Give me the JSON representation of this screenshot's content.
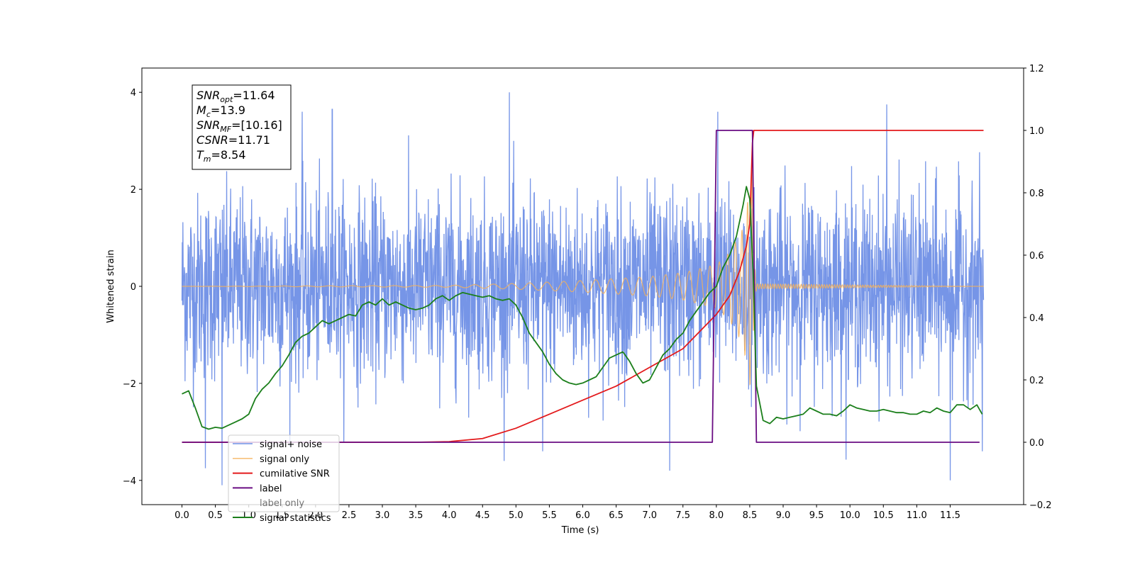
{
  "chart_data": {
    "type": "line",
    "xlabel": "Time (s)",
    "ylabel": "Whitened strain",
    "xlim": [
      -0.6,
      12.6
    ],
    "ylim": [
      -4.5,
      4.5
    ],
    "y2lim": [
      -0.2,
      1.2
    ],
    "x_ticks": [
      0.0,
      0.5,
      1.0,
      1.5,
      2.0,
      2.5,
      3.0,
      3.5,
      4.0,
      4.5,
      5.0,
      5.5,
      6.0,
      6.5,
      7.0,
      7.5,
      8.0,
      8.5,
      9.0,
      9.5,
      10.0,
      10.5,
      11.0,
      11.5
    ],
    "x_tick_labels": [
      "0.0",
      "0.5",
      "1.0",
      "1.5",
      "2.0",
      "2.5",
      "3.0",
      "3.5",
      "4.0",
      "4.5",
      "5.0",
      "5.5",
      "6.0",
      "6.5",
      "7.0",
      "7.5",
      "8.0",
      "8.5",
      "9.0",
      "9.5",
      "10.0",
      "10.5",
      "11.0",
      "11.5"
    ],
    "y_ticks": [
      -4,
      -2,
      0,
      2,
      4
    ],
    "y_tick_labels": [
      "−4",
      "−2",
      "0",
      "2",
      "4"
    ],
    "y2_ticks": [
      -0.2,
      0.0,
      0.2,
      0.4,
      0.6,
      0.8,
      1.0,
      1.2
    ],
    "y2_tick_labels": [
      "−0.2",
      "0.0",
      "0.2",
      "0.4",
      "0.6",
      "0.8",
      "1.0",
      "1.2"
    ],
    "grid": false,
    "legend_position": "lower-left",
    "series": [
      {
        "name": "signal+ noise",
        "axis": "left",
        "color": "#6f8fe6",
        "kind": "noise",
        "x_range": [
          0.0,
          12.0
        ],
        "typical_amplitude": [
          -2.3,
          2.4
        ],
        "peak_values": [
          [
            0.35,
            -3.75
          ],
          [
            0.6,
            -4.1
          ],
          [
            1.8,
            3.6
          ],
          [
            2.25,
            3.65
          ],
          [
            4.9,
            4.0
          ],
          [
            5.4,
            -3.4
          ],
          [
            7.3,
            -3.8
          ],
          [
            8.02,
            3.6
          ],
          [
            10.55,
            3.75
          ],
          [
            11.5,
            -4.0
          ],
          [
            11.98,
            -3.4
          ]
        ]
      },
      {
        "name": "signal only",
        "axis": "left",
        "color": "#f5b25a",
        "kind": "chirp",
        "x_range": [
          0.0,
          12.0
        ],
        "merger_time": 8.54,
        "envelope": {
          "x": [
            0.0,
            4.0,
            5.0,
            6.0,
            7.0,
            7.5,
            8.0,
            8.2,
            8.4,
            8.5,
            8.54,
            8.56,
            8.6,
            12.0
          ],
          "y": [
            0.0,
            0.02,
            0.06,
            0.12,
            0.2,
            0.28,
            0.45,
            0.7,
            1.2,
            2.0,
            2.5,
            0.6,
            0.05,
            0.0
          ]
        }
      },
      {
        "name": "cumilative SNR",
        "axis": "right",
        "color": "#e31a1c",
        "x": [
          0.0,
          3.5,
          4.0,
          4.5,
          5.0,
          5.5,
          6.0,
          6.5,
          7.0,
          7.5,
          8.0,
          8.2,
          8.35,
          8.45,
          8.5,
          8.54,
          8.56,
          12.0
        ],
        "values": [
          0.0,
          0.0,
          0.002,
          0.012,
          0.045,
          0.09,
          0.135,
          0.18,
          0.24,
          0.3,
          0.41,
          0.47,
          0.55,
          0.63,
          0.7,
          0.96,
          1.0,
          1.0
        ]
      },
      {
        "name": "label",
        "axis": "right",
        "color": "#6a0d83",
        "x": [
          0.0,
          7.94,
          8.0,
          8.5,
          8.54,
          8.6,
          11.94
        ],
        "values": [
          0.0,
          0.0,
          1.0,
          1.0,
          1.0,
          0.0,
          0.0
        ]
      },
      {
        "name": "label only",
        "axis": "right",
        "color": "#c8c8c8",
        "hidden_behind_legend": true,
        "x": [],
        "values": []
      },
      {
        "name": "signal statistics",
        "axis": "right",
        "color": "#1b7f1b",
        "x": [
          0.0,
          0.1,
          0.2,
          0.3,
          0.4,
          0.5,
          0.6,
          0.7,
          0.8,
          0.9,
          1.0,
          1.1,
          1.2,
          1.3,
          1.4,
          1.5,
          1.6,
          1.7,
          1.8,
          1.9,
          2.0,
          2.1,
          2.2,
          2.3,
          2.4,
          2.5,
          2.6,
          2.7,
          2.8,
          2.9,
          3.0,
          3.1,
          3.2,
          3.3,
          3.4,
          3.5,
          3.6,
          3.7,
          3.8,
          3.9,
          4.0,
          4.1,
          4.2,
          4.3,
          4.4,
          4.5,
          4.6,
          4.7,
          4.8,
          4.9,
          5.0,
          5.1,
          5.2,
          5.3,
          5.4,
          5.5,
          5.6,
          5.7,
          5.8,
          5.9,
          6.0,
          6.1,
          6.2,
          6.3,
          6.4,
          6.5,
          6.6,
          6.7,
          6.8,
          6.9,
          7.0,
          7.1,
          7.2,
          7.3,
          7.4,
          7.5,
          7.6,
          7.7,
          7.8,
          7.9,
          8.0,
          8.1,
          8.2,
          8.3,
          8.4,
          8.45,
          8.5,
          8.55,
          8.6,
          8.7,
          8.8,
          8.9,
          9.0,
          9.1,
          9.2,
          9.3,
          9.4,
          9.5,
          9.6,
          9.7,
          9.8,
          9.9,
          10.0,
          10.1,
          10.2,
          10.3,
          10.4,
          10.5,
          10.6,
          10.7,
          10.8,
          10.9,
          11.0,
          11.1,
          11.2,
          11.3,
          11.4,
          11.5,
          11.6,
          11.7,
          11.8,
          11.9,
          11.98
        ],
        "values": [
          0.155,
          0.165,
          0.11,
          0.05,
          0.042,
          0.048,
          0.045,
          0.055,
          0.065,
          0.075,
          0.09,
          0.14,
          0.17,
          0.19,
          0.22,
          0.245,
          0.28,
          0.32,
          0.34,
          0.35,
          0.37,
          0.39,
          0.38,
          0.39,
          0.4,
          0.41,
          0.405,
          0.44,
          0.45,
          0.44,
          0.46,
          0.44,
          0.45,
          0.44,
          0.43,
          0.425,
          0.43,
          0.44,
          0.46,
          0.47,
          0.455,
          0.47,
          0.48,
          0.475,
          0.47,
          0.465,
          0.47,
          0.46,
          0.455,
          0.46,
          0.44,
          0.4,
          0.35,
          0.32,
          0.29,
          0.25,
          0.22,
          0.2,
          0.19,
          0.185,
          0.19,
          0.2,
          0.21,
          0.24,
          0.27,
          0.28,
          0.29,
          0.26,
          0.22,
          0.19,
          0.2,
          0.24,
          0.28,
          0.3,
          0.33,
          0.35,
          0.39,
          0.42,
          0.45,
          0.48,
          0.5,
          0.56,
          0.6,
          0.66,
          0.76,
          0.82,
          0.78,
          0.55,
          0.18,
          0.07,
          0.06,
          0.08,
          0.075,
          0.08,
          0.085,
          0.09,
          0.11,
          0.1,
          0.09,
          0.09,
          0.085,
          0.1,
          0.12,
          0.11,
          0.105,
          0.1,
          0.1,
          0.105,
          0.1,
          0.095,
          0.095,
          0.09,
          0.09,
          0.1,
          0.095,
          0.11,
          0.1,
          0.095,
          0.12,
          0.12,
          0.105,
          0.12,
          0.09
        ]
      }
    ],
    "annotation": {
      "lines": [
        {
          "main": "SNR",
          "sub": "opt",
          "value": "=11.64"
        },
        {
          "main": "M",
          "sub": "c",
          "value": "=13.9"
        },
        {
          "main": "SNR",
          "sub": "MF",
          "value": "=[10.16]"
        },
        {
          "main": "CSNR",
          "sub": "",
          "value": "=11.71"
        },
        {
          "main": "T",
          "sub": "m",
          "value": "=8.54"
        }
      ]
    }
  }
}
